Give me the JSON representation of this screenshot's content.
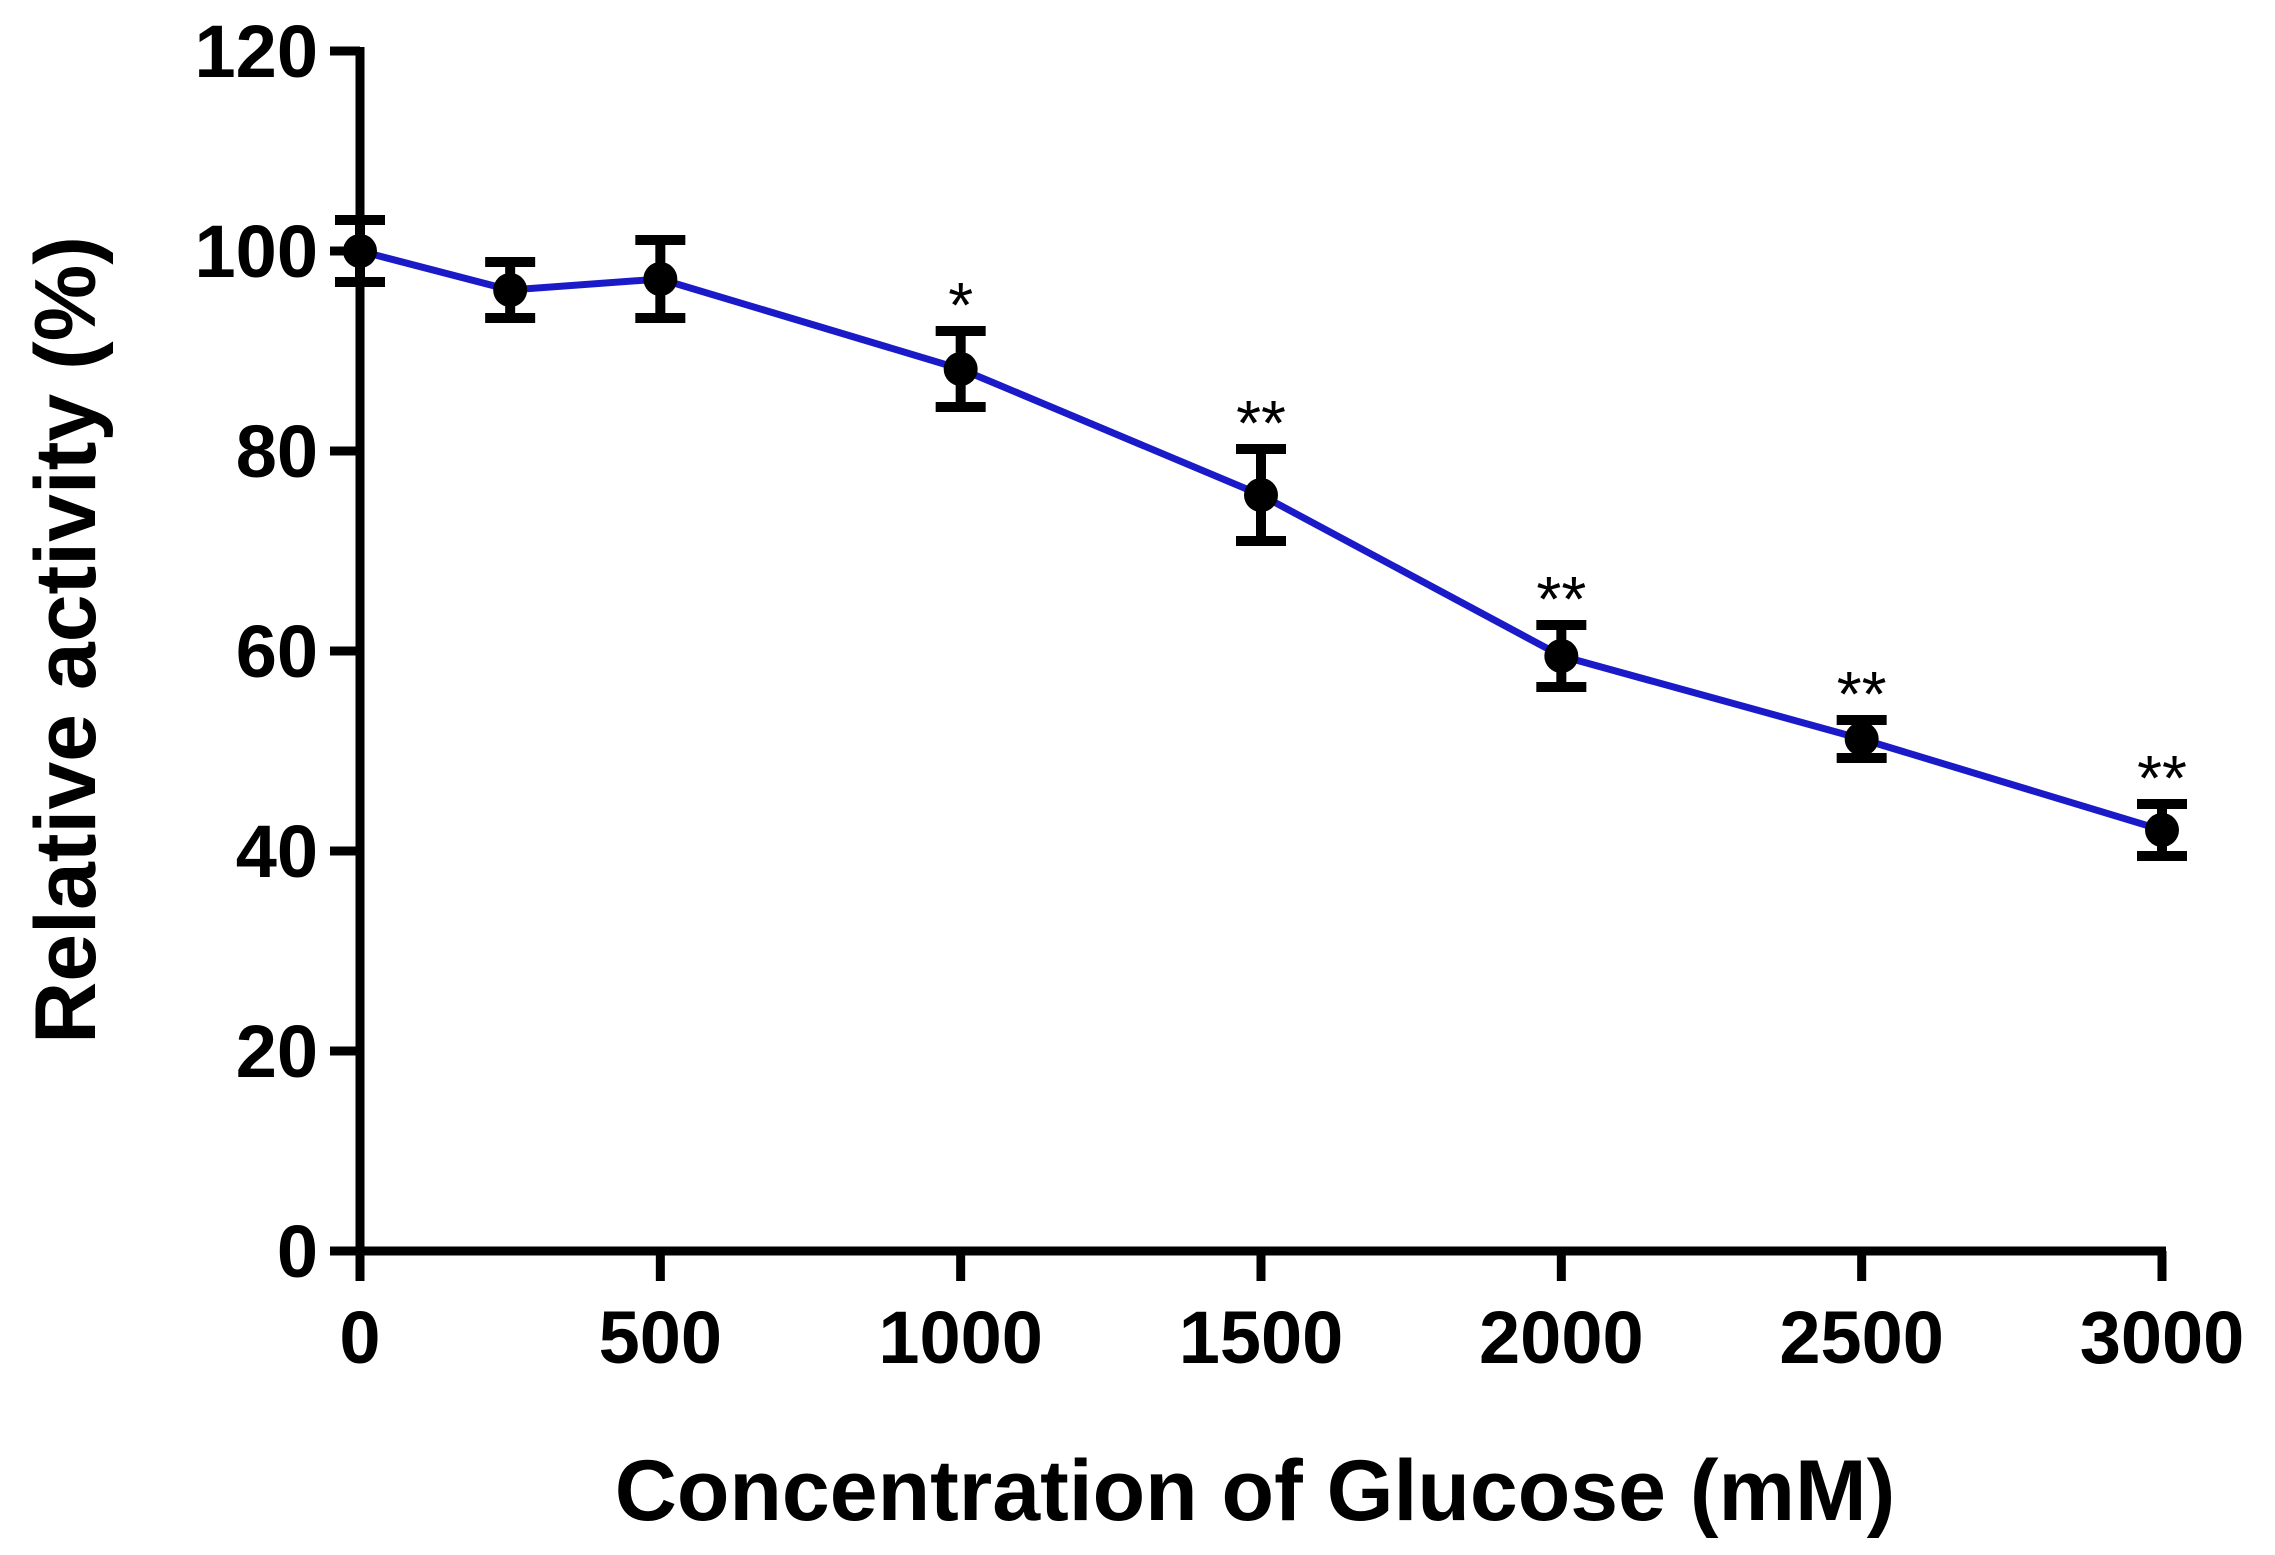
{
  "chart_data": {
    "type": "line",
    "xlabel": "Concentration of Glucose (mM)",
    "ylabel": "Relative activity (%)",
    "x": [
      0,
      250,
      500,
      1000,
      1500,
      2000,
      2500,
      3000
    ],
    "series": [
      {
        "color": "#1a1ac8",
        "marker_color": "#000000",
        "values": [
          100,
          96.1,
          97.2,
          88.2,
          75.6,
          59.5,
          51.2,
          42.1
        ],
        "errors": [
          3.1,
          2.8,
          3.9,
          3.8,
          4.6,
          3.1,
          1.9,
          2.6
        ],
        "annotations": [
          null,
          null,
          null,
          "*",
          "**",
          "**",
          "**",
          "**"
        ]
      }
    ],
    "xlim": [
      0,
      3000
    ],
    "xticks": [
      0,
      500,
      1000,
      1500,
      2000,
      2500,
      3000
    ],
    "ylim": [
      0,
      120
    ],
    "yticks": [
      0,
      20,
      40,
      60,
      80,
      100,
      120
    ]
  }
}
